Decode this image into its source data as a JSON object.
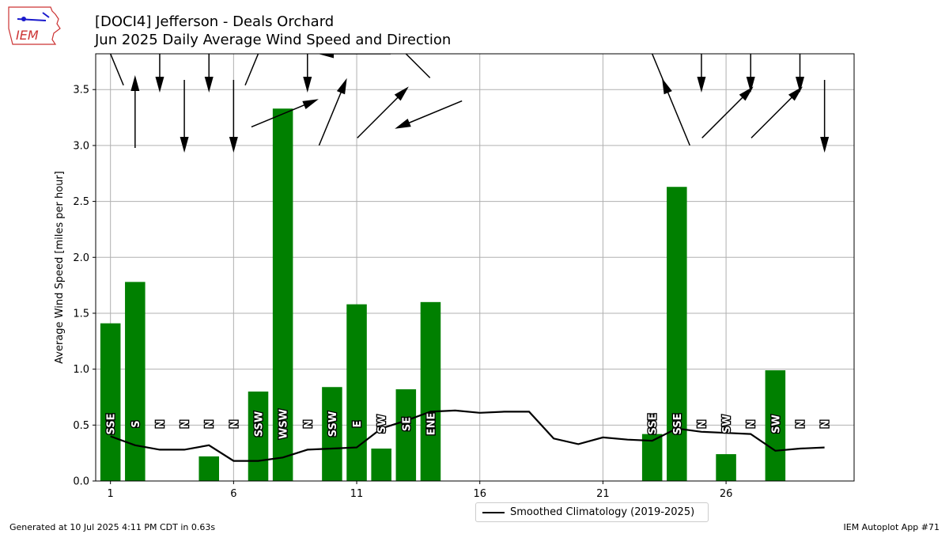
{
  "header": {
    "title": "[DOCI4] Jefferson - Deals Orchard",
    "subtitle": "Jun 2025 Daily Average Wind Speed and Direction"
  },
  "logo": {
    "text": "IEM",
    "icon": "iowa-state-logo"
  },
  "footer": {
    "left": "Generated at 10 Jul 2025 4:11 PM CDT in 0.63s",
    "right": "IEM Autoplot App #71"
  },
  "legend": {
    "label": "Smoothed Climatology (2019-2025)"
  },
  "colors": {
    "bar": "#008000",
    "line": "#000000",
    "grid": "#b0b0b0",
    "arrow": "#000000"
  },
  "chart_data": {
    "type": "bar",
    "ylabel": "Average Wind Speed [miles per hour]",
    "xlabel": "",
    "ylim": [
      0,
      3.82
    ],
    "xlim": [
      0.4,
      31.2
    ],
    "grid": true,
    "legend_position": "below",
    "x_ticks": [
      1,
      6,
      11,
      16,
      21,
      26
    ],
    "y_ticks": [
      "0.0",
      "0.5",
      "1.0",
      "1.5",
      "2.0",
      "2.5",
      "3.0",
      "3.5"
    ],
    "days": [
      1,
      2,
      3,
      4,
      5,
      6,
      7,
      8,
      9,
      10,
      11,
      12,
      13,
      14,
      15,
      16,
      17,
      18,
      19,
      20,
      21,
      22,
      23,
      24,
      25,
      26,
      27,
      28,
      29,
      30
    ],
    "speed": [
      1.41,
      1.78,
      0.0,
      0.0,
      0.22,
      0.0,
      0.8,
      3.33,
      0.0,
      0.84,
      1.58,
      0.29,
      0.82,
      1.6,
      null,
      null,
      null,
      null,
      null,
      null,
      null,
      null,
      0.42,
      2.63,
      0.0,
      0.24,
      0.0,
      0.99,
      0.0,
      0.0
    ],
    "direction_labels": [
      "SSE",
      "S",
      "N",
      "N",
      "N",
      "N",
      "SSW",
      "WSW",
      "N",
      "SSW",
      "E",
      "SW",
      "SE",
      "ENE",
      null,
      null,
      null,
      null,
      null,
      null,
      null,
      null,
      "SSE",
      "SSE",
      "N",
      "SW",
      "N",
      "SW",
      "N",
      "N"
    ],
    "direction_degrees": [
      157.5,
      180,
      0,
      0,
      0,
      0,
      202.5,
      247.5,
      0,
      202.5,
      90,
      225,
      135,
      67.5,
      null,
      null,
      null,
      null,
      null,
      null,
      null,
      null,
      157.5,
      157.5,
      0,
      225,
      0,
      225,
      0,
      0
    ],
    "series": [
      {
        "name": "Smoothed Climatology (2019-2025)",
        "type": "line",
        "values": [
          0.4,
          0.32,
          0.28,
          0.28,
          0.32,
          0.18,
          0.18,
          0.21,
          0.28,
          0.29,
          0.3,
          0.47,
          0.54,
          0.62,
          0.63,
          0.61,
          0.62,
          0.62,
          0.38,
          0.33,
          0.39,
          0.37,
          0.36,
          0.47,
          0.44,
          0.43,
          0.42,
          0.27,
          0.29,
          0.3
        ]
      }
    ]
  }
}
